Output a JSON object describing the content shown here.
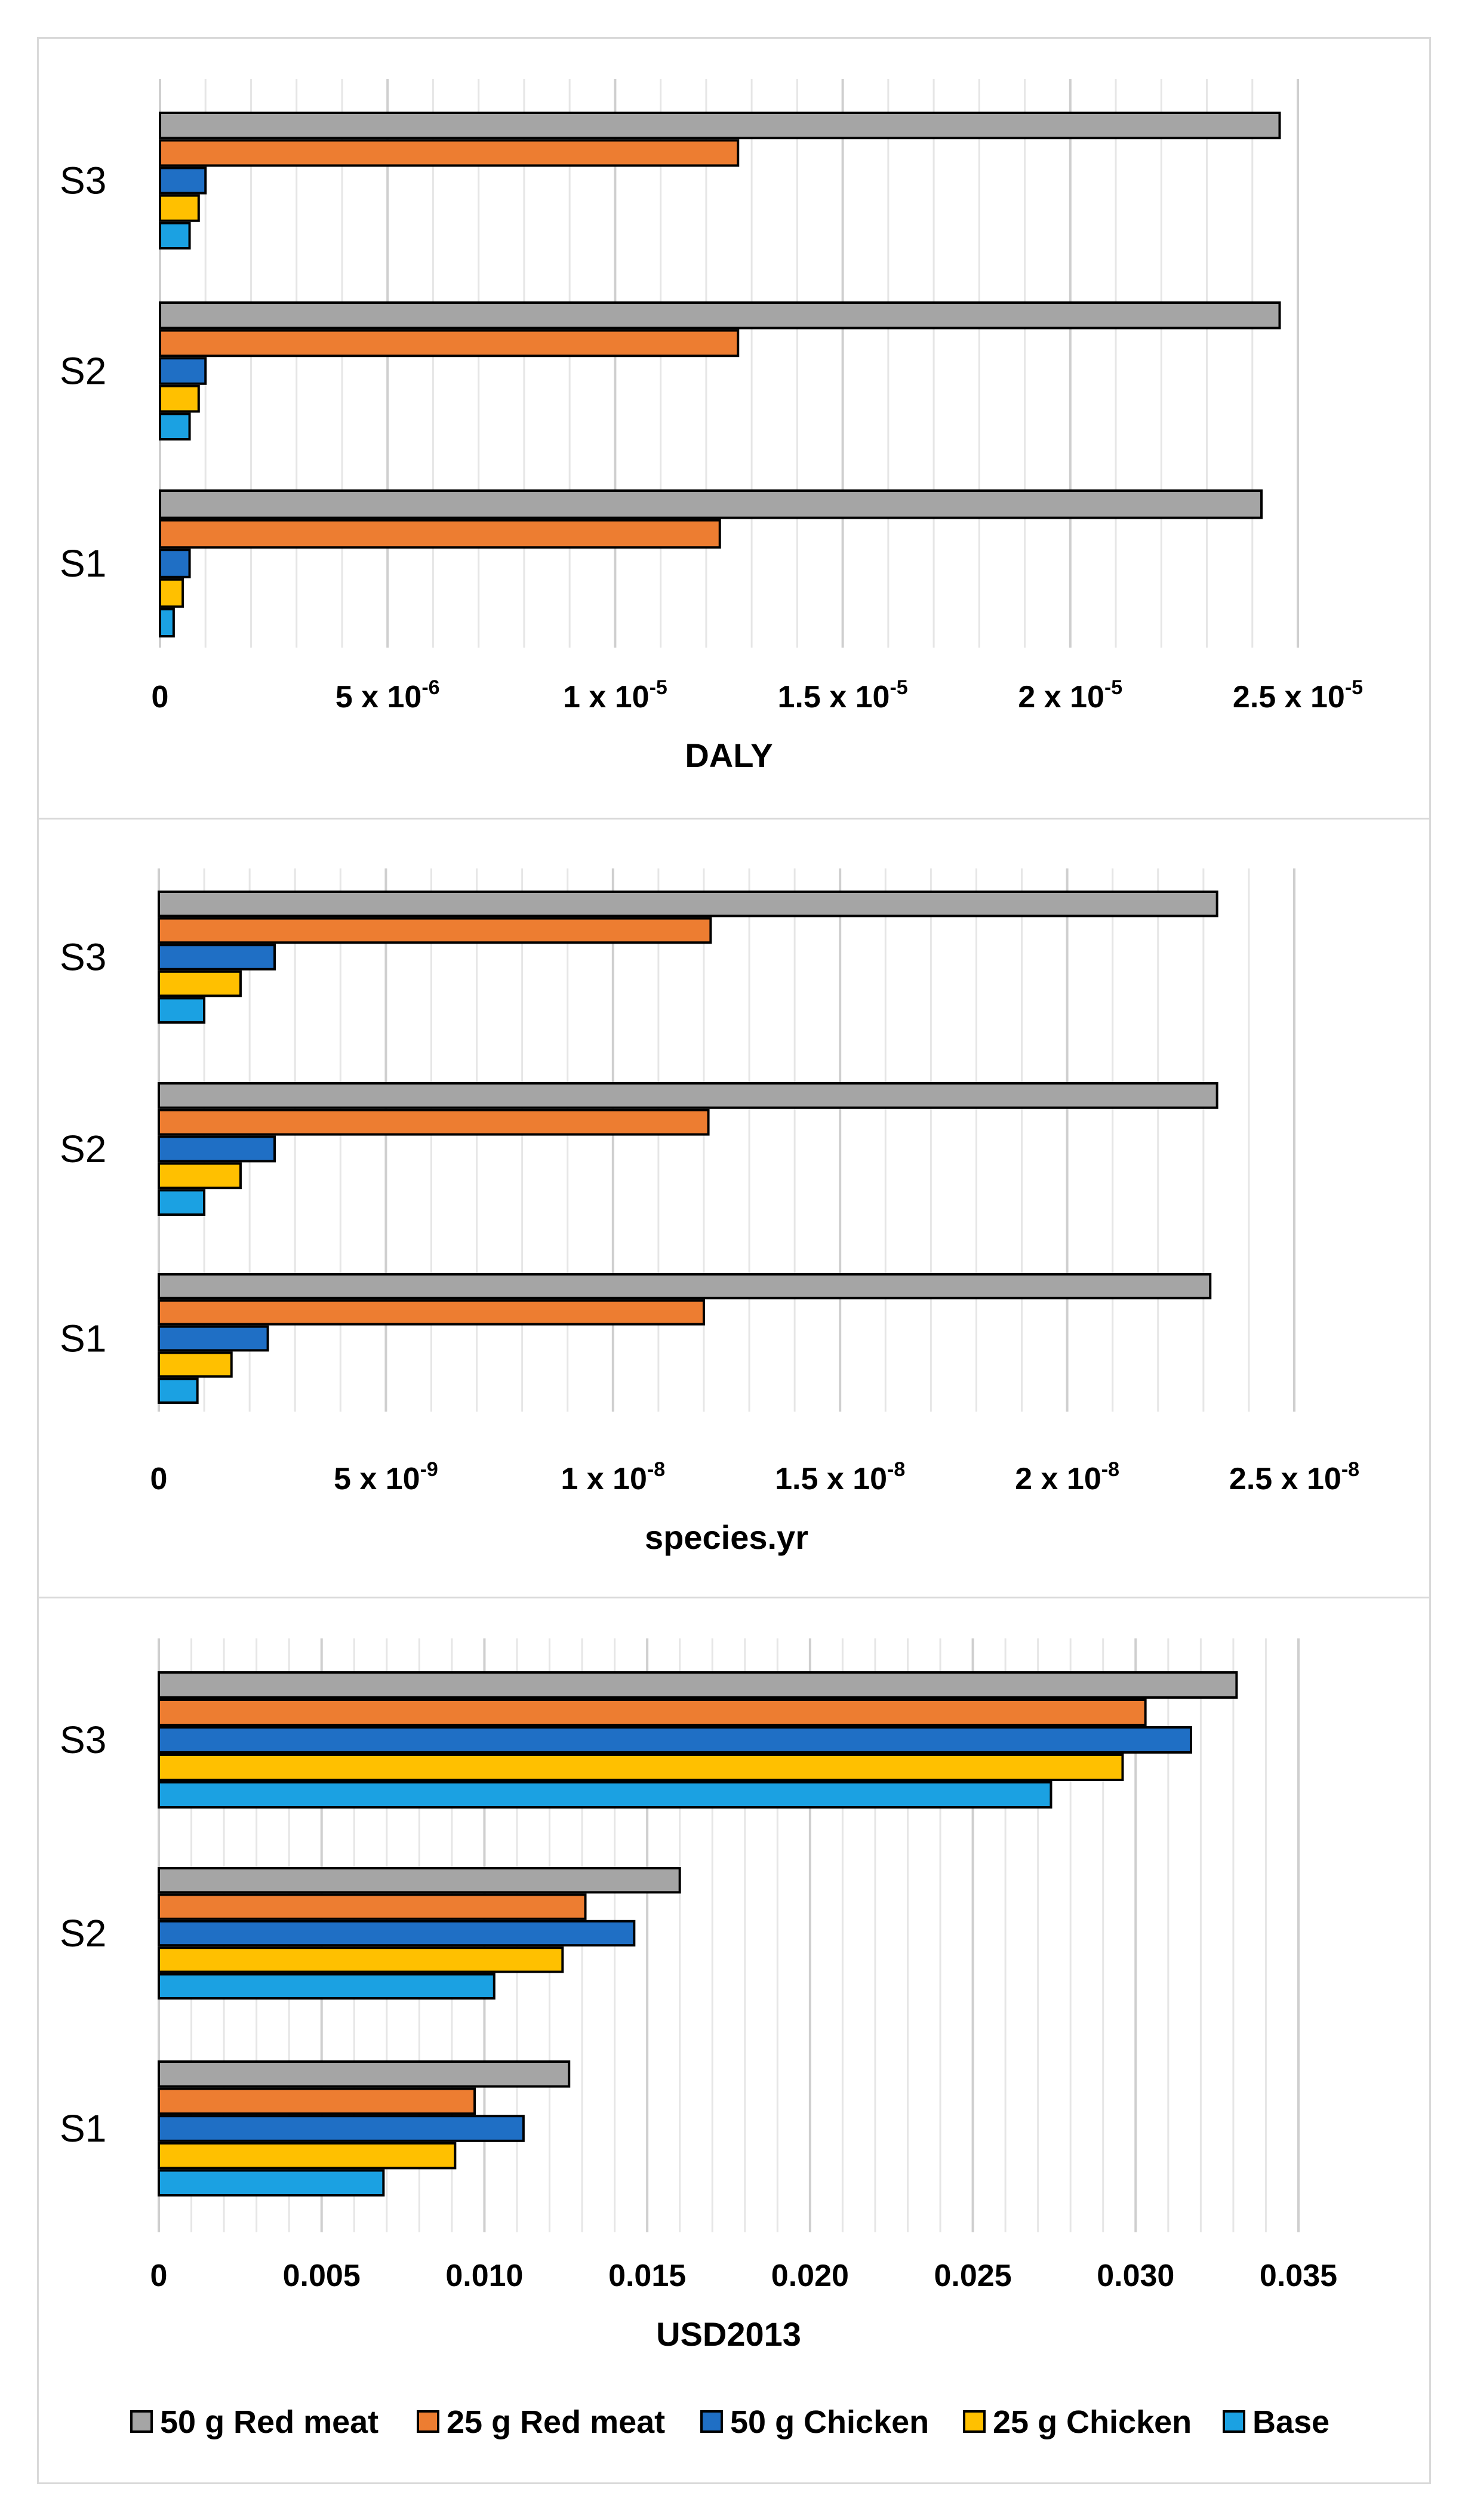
{
  "chart_data": [
    {
      "type": "bar",
      "orientation": "horizontal",
      "categories": [
        "S1",
        "S2",
        "S3"
      ],
      "xlabel": "DALY",
      "xlim": [
        0,
        2.5e-05
      ],
      "grid": true,
      "ticks": [
        {
          "value": 0,
          "mantissa": "0",
          "exponent": ""
        },
        {
          "value": 5e-06,
          "mantissa": "5 x 10",
          "exponent": "-6"
        },
        {
          "value": 1e-05,
          "mantissa": "1 x 10",
          "exponent": "-5"
        },
        {
          "value": 1.5e-05,
          "mantissa": "1.5 x 10",
          "exponent": "-5"
        },
        {
          "value": 2e-05,
          "mantissa": "2 x 10",
          "exponent": "-5"
        },
        {
          "value": 2.5e-05,
          "mantissa": "2.5 x 10",
          "exponent": "-5"
        }
      ],
      "series": [
        {
          "name": "50 g Red meat",
          "values": [
            2.42e-05,
            2.46e-05,
            2.46e-05
          ]
        },
        {
          "name": "25 g Red meat",
          "values": [
            1.23e-05,
            1.27e-05,
            1.27e-05
          ]
        },
        {
          "name": "50 g Chicken",
          "values": [
            6.5e-07,
            1e-06,
            1e-06
          ]
        },
        {
          "name": "25 g Chicken",
          "values": [
            5e-07,
            8.5e-07,
            8.5e-07
          ]
        },
        {
          "name": "Base",
          "values": [
            3e-07,
            6.5e-07,
            6.5e-07
          ]
        }
      ]
    },
    {
      "type": "bar",
      "orientation": "horizontal",
      "categories": [
        "S1",
        "S2",
        "S3"
      ],
      "xlabel": "species.yr",
      "xlim": [
        0,
        2.5e-08
      ],
      "grid": true,
      "ticks": [
        {
          "value": 0,
          "mantissa": "0",
          "exponent": ""
        },
        {
          "value": 5e-09,
          "mantissa": "5 x 10",
          "exponent": "-9"
        },
        {
          "value": 1e-08,
          "mantissa": "1 x 10",
          "exponent": "-8"
        },
        {
          "value": 1.5e-08,
          "mantissa": "1.5 x 10",
          "exponent": "-8"
        },
        {
          "value": 2e-08,
          "mantissa": "2 x 10",
          "exponent": "-8"
        },
        {
          "value": 2.5e-08,
          "mantissa": "2.5 x 10",
          "exponent": "-8"
        }
      ],
      "series": [
        {
          "name": "50 g Red meat",
          "values": [
            2.315e-08,
            2.33e-08,
            2.33e-08
          ]
        },
        {
          "name": "25 g Red meat",
          "values": [
            1.2e-08,
            1.21e-08,
            1.215e-08
          ]
        },
        {
          "name": "50 g Chicken",
          "values": [
            2.4e-09,
            2.55e-09,
            2.55e-09
          ]
        },
        {
          "name": "25 g Chicken",
          "values": [
            1.6e-09,
            1.8e-09,
            1.8e-09
          ]
        },
        {
          "name": "Base",
          "values": [
            8.5e-10,
            1e-09,
            1e-09
          ]
        }
      ]
    },
    {
      "type": "bar",
      "orientation": "horizontal",
      "categories": [
        "S1",
        "S2",
        "S3"
      ],
      "xlabel": "USD2013",
      "xlim": [
        0,
        0.035
      ],
      "grid": true,
      "ticks": [
        {
          "value": 0,
          "mantissa": "0",
          "exponent": ""
        },
        {
          "value": 0.005,
          "mantissa": "0.005",
          "exponent": ""
        },
        {
          "value": 0.01,
          "mantissa": "0.010",
          "exponent": ""
        },
        {
          "value": 0.015,
          "mantissa": "0.015",
          "exponent": ""
        },
        {
          "value": 0.02,
          "mantissa": "0.020",
          "exponent": ""
        },
        {
          "value": 0.025,
          "mantissa": "0.025",
          "exponent": ""
        },
        {
          "value": 0.03,
          "mantissa": "0.030",
          "exponent": ""
        },
        {
          "value": 0.035,
          "mantissa": "0.035",
          "exponent": ""
        }
      ],
      "series": [
        {
          "name": "50 g Red meat",
          "values": [
            0.0126,
            0.016,
            0.0331
          ]
        },
        {
          "name": "25 g Red meat",
          "values": [
            0.0097,
            0.0131,
            0.0303
          ]
        },
        {
          "name": "50 g Chicken",
          "values": [
            0.0112,
            0.0146,
            0.0317
          ]
        },
        {
          "name": "25 g Chicken",
          "values": [
            0.0091,
            0.0124,
            0.0296
          ]
        },
        {
          "name": "Base",
          "values": [
            0.0069,
            0.0103,
            0.0274
          ]
        }
      ]
    }
  ],
  "legend": [
    {
      "name": "50 g Red meat",
      "color": "#a5a5a5"
    },
    {
      "name": "25 g Red meat",
      "color": "#ed7d31"
    },
    {
      "name": "50 g Chicken",
      "color": "#1f6fc5"
    },
    {
      "name": "25 g Chicken",
      "color": "#ffc000"
    },
    {
      "name": "Base",
      "color": "#1ba1e2"
    }
  ],
  "series_colors": [
    "#a5a5a5",
    "#ed7d31",
    "#1f6fc5",
    "#ffc000",
    "#1ba1e2"
  ]
}
